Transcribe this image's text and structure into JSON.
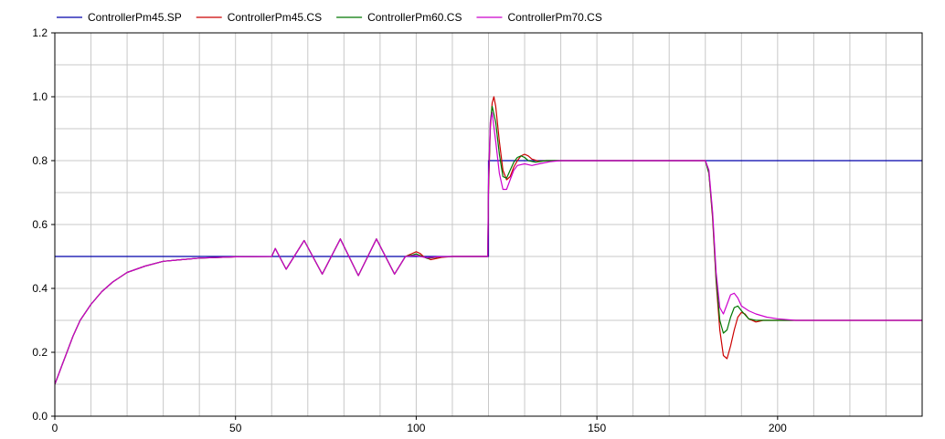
{
  "chart_data": {
    "type": "line",
    "title": "",
    "xlabel": "",
    "ylabel": "",
    "xlim": [
      0,
      240
    ],
    "ylim": [
      0,
      1.2
    ],
    "x_ticks": [
      0,
      50,
      100,
      150,
      200
    ],
    "x_tick_labels": [
      "0",
      "50",
      "100",
      "150",
      "200"
    ],
    "y_ticks": [
      0,
      0.2,
      0.4,
      0.6,
      0.8,
      1.0,
      1.2
    ],
    "y_tick_labels": [
      "0.0",
      "0.2",
      "0.4",
      "0.6",
      "0.8",
      "1.0",
      "1.2"
    ],
    "grid": true,
    "legend_position": "top",
    "series": [
      {
        "name": "ControllerPm45.SP",
        "color": "#0000aa",
        "x": [
          0,
          120,
          120,
          180,
          180,
          240
        ],
        "y": [
          0.5,
          0.5,
          0.8,
          0.8,
          0.8,
          0.8
        ]
      },
      {
        "name": "ControllerPm45.CS",
        "color": "#cc0000",
        "x": [
          0,
          1,
          2,
          3,
          5,
          7,
          10,
          13,
          16,
          20,
          25,
          30,
          35,
          40,
          50,
          60,
          61,
          64,
          69,
          74,
          79,
          84,
          89,
          94,
          97,
          99,
          100,
          101,
          102,
          104,
          107,
          110,
          113,
          119.8,
          120,
          120.5,
          121,
          121.5,
          122,
          123,
          124,
          125,
          126,
          127,
          128,
          129,
          130,
          131,
          132,
          134,
          136,
          140,
          145,
          150,
          155,
          160,
          165,
          170,
          175,
          179.8,
          180,
          181,
          182,
          183,
          184,
          185,
          186,
          187,
          188,
          189,
          190,
          191,
          192,
          194,
          196,
          200,
          205,
          210,
          215,
          220,
          230,
          240
        ],
        "y": [
          0.1,
          0.13,
          0.16,
          0.19,
          0.25,
          0.3,
          0.35,
          0.39,
          0.42,
          0.45,
          0.47,
          0.485,
          0.49,
          0.495,
          0.499,
          0.5,
          0.525,
          0.46,
          0.55,
          0.445,
          0.555,
          0.44,
          0.555,
          0.445,
          0.5,
          0.51,
          0.515,
          0.51,
          0.5,
          0.49,
          0.497,
          0.5,
          0.5,
          0.5,
          0.7,
          0.9,
          0.98,
          1.0,
          0.97,
          0.86,
          0.77,
          0.74,
          0.75,
          0.78,
          0.8,
          0.815,
          0.82,
          0.815,
          0.805,
          0.798,
          0.8,
          0.8,
          0.8,
          0.8,
          0.8,
          0.8,
          0.8,
          0.8,
          0.8,
          0.8,
          0.8,
          0.76,
          0.62,
          0.42,
          0.27,
          0.19,
          0.18,
          0.22,
          0.27,
          0.31,
          0.325,
          0.32,
          0.305,
          0.295,
          0.3,
          0.3,
          0.3,
          0.3,
          0.3,
          0.3,
          0.3,
          0.3
        ]
      },
      {
        "name": "ControllerPm60.CS",
        "color": "#007700",
        "x": [
          0,
          1,
          2,
          3,
          5,
          7,
          10,
          13,
          16,
          20,
          25,
          30,
          35,
          40,
          50,
          60,
          61,
          64,
          69,
          74,
          79,
          84,
          89,
          94,
          97,
          99,
          100,
          101,
          103,
          106,
          110,
          113,
          119.8,
          120,
          120.5,
          121,
          122,
          123,
          124,
          125,
          126,
          127,
          128,
          129,
          130,
          131,
          133,
          136,
          140,
          150,
          160,
          170,
          179.8,
          180,
          181,
          182,
          183,
          184,
          185,
          186,
          187,
          188,
          189,
          190,
          192,
          194,
          197,
          200,
          210,
          220,
          240
        ],
        "y": [
          0.1,
          0.13,
          0.16,
          0.19,
          0.25,
          0.3,
          0.35,
          0.39,
          0.42,
          0.45,
          0.47,
          0.485,
          0.49,
          0.495,
          0.499,
          0.5,
          0.525,
          0.46,
          0.55,
          0.445,
          0.555,
          0.44,
          0.555,
          0.445,
          0.5,
          0.505,
          0.508,
          0.503,
          0.494,
          0.498,
          0.5,
          0.5,
          0.5,
          0.72,
          0.92,
          0.97,
          0.92,
          0.82,
          0.75,
          0.745,
          0.77,
          0.795,
          0.81,
          0.815,
          0.81,
          0.8,
          0.795,
          0.8,
          0.8,
          0.8,
          0.8,
          0.8,
          0.8,
          0.8,
          0.76,
          0.63,
          0.43,
          0.3,
          0.26,
          0.27,
          0.31,
          0.34,
          0.345,
          0.33,
          0.305,
          0.3,
          0.3,
          0.3,
          0.3,
          0.3,
          0.3
        ]
      },
      {
        "name": "ControllerPm70.CS",
        "color": "#cc00cc",
        "x": [
          0,
          1,
          2,
          3,
          5,
          7,
          10,
          13,
          16,
          20,
          25,
          30,
          35,
          40,
          50,
          60,
          61,
          64,
          69,
          74,
          79,
          84,
          89,
          94,
          97,
          99,
          100,
          101,
          103,
          106,
          110,
          113,
          119.8,
          120,
          120.5,
          121,
          122,
          123,
          124,
          125,
          126,
          127,
          128,
          130,
          132,
          134,
          137,
          140,
          150,
          160,
          170,
          179.8,
          180,
          181,
          182,
          183,
          184,
          185,
          186,
          187,
          188,
          189,
          190,
          192,
          194,
          197,
          200,
          205,
          210,
          220,
          240
        ],
        "y": [
          0.1,
          0.13,
          0.16,
          0.19,
          0.25,
          0.3,
          0.35,
          0.39,
          0.42,
          0.45,
          0.47,
          0.485,
          0.49,
          0.495,
          0.499,
          0.5,
          0.525,
          0.46,
          0.55,
          0.445,
          0.555,
          0.44,
          0.555,
          0.445,
          0.5,
          0.502,
          0.503,
          0.5,
          0.496,
          0.499,
          0.5,
          0.5,
          0.5,
          0.74,
          0.92,
          0.95,
          0.86,
          0.76,
          0.71,
          0.71,
          0.74,
          0.77,
          0.785,
          0.79,
          0.785,
          0.79,
          0.797,
          0.8,
          0.8,
          0.8,
          0.8,
          0.8,
          0.8,
          0.77,
          0.64,
          0.45,
          0.34,
          0.32,
          0.35,
          0.38,
          0.385,
          0.37,
          0.345,
          0.33,
          0.32,
          0.31,
          0.305,
          0.3,
          0.3,
          0.3,
          0.3
        ]
      }
    ]
  }
}
